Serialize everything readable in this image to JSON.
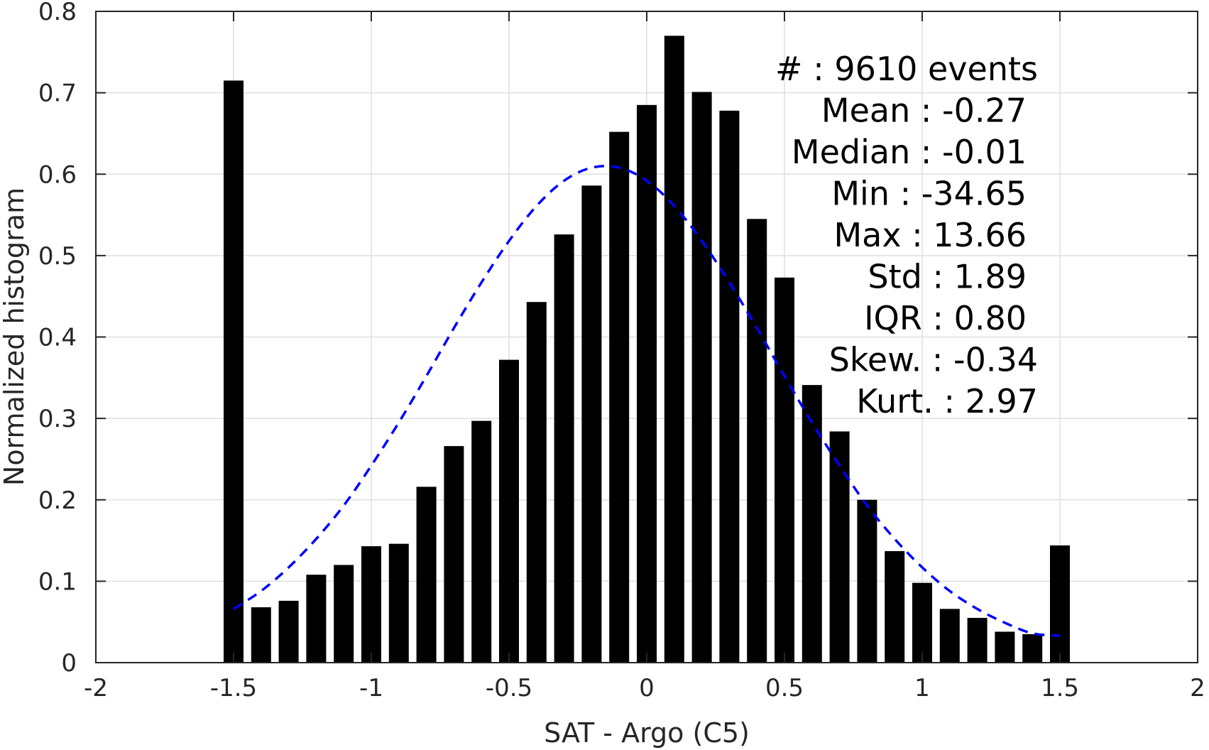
{
  "chart_data": {
    "type": "bar",
    "xlabel": "SAT - Argo (C5)",
    "ylabel": "Normalized histogram",
    "xlim": [
      -2,
      2
    ],
    "ylim": [
      0,
      0.8
    ],
    "xticks": [
      "-2",
      "-1.5",
      "-1",
      "-0.5",
      "0",
      "0.5",
      "1",
      "1.5",
      "2"
    ],
    "yticks": [
      "0",
      "0.1",
      "0.2",
      "0.3",
      "0.4",
      "0.5",
      "0.6",
      "0.7",
      "0.8"
    ],
    "grid": true,
    "bar_color": "#000000",
    "x": [
      -1.5,
      -1.4,
      -1.3,
      -1.2,
      -1.1,
      -1.0,
      -0.9,
      -0.8,
      -0.7,
      -0.6,
      -0.5,
      -0.4,
      -0.3,
      -0.2,
      -0.1,
      0.0,
      0.1,
      0.2,
      0.3,
      0.4,
      0.5,
      0.6,
      0.7,
      0.8,
      0.9,
      1.0,
      1.1,
      1.2,
      1.3,
      1.4,
      1.5
    ],
    "values": [
      0.715,
      0.068,
      0.076,
      0.108,
      0.12,
      0.143,
      0.146,
      0.216,
      0.266,
      0.297,
      0.372,
      0.443,
      0.526,
      0.586,
      0.652,
      0.685,
      0.77,
      0.701,
      0.678,
      0.545,
      0.473,
      0.341,
      0.284,
      0.2,
      0.137,
      0.098,
      0.066,
      0.055,
      0.038,
      0.035,
      0.144
    ],
    "fit_curve": {
      "style": "dashed",
      "color": "#0000ff",
      "x": [
        -1.5,
        -1.4,
        -1.3,
        -1.2,
        -1.1,
        -1.0,
        -0.9,
        -0.8,
        -0.7,
        -0.6,
        -0.5,
        -0.4,
        -0.3,
        -0.2,
        -0.1,
        0.0,
        0.1,
        0.2,
        0.3,
        0.4,
        0.5,
        0.6,
        0.7,
        0.8,
        0.9,
        1.0,
        1.1,
        1.2,
        1.3,
        1.4,
        1.5
      ],
      "y": [
        0.066,
        0.088,
        0.117,
        0.152,
        0.193,
        0.242,
        0.295,
        0.352,
        0.411,
        0.467,
        0.518,
        0.561,
        0.592,
        0.608,
        0.608,
        0.592,
        0.561,
        0.518,
        0.467,
        0.411,
        0.352,
        0.295,
        0.242,
        0.193,
        0.152,
        0.117,
        0.088,
        0.066,
        0.049,
        0.036,
        0.033
      ]
    },
    "annotations": [
      "#  : 9610 events",
      "Mean : -0.27",
      "Median : -0.01",
      "Min : -34.65",
      "Max : 13.66",
      "Std : 1.89",
      "IQR : 0.80",
      "Skew. : -0.34",
      "Kurt. : 2.97"
    ]
  }
}
